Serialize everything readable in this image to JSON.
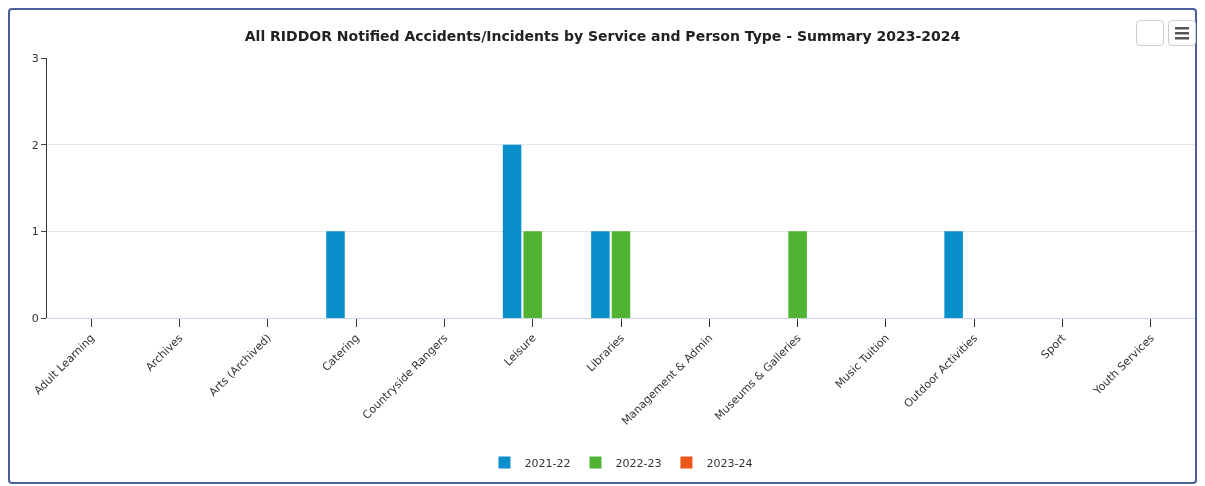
{
  "chart_data": {
    "type": "bar",
    "title": "All RIDDOR Notified Accidents/Incidents by Service and Person Type - Summary 2023-2024",
    "categories": [
      "Adult Learning",
      "Archives",
      "Arts (Archived)",
      "Catering",
      "Countryside Rangers",
      "Leisure",
      "Libraries",
      "Management & Admin",
      "Museums & Galleries",
      "Music Tuition",
      "Outdoor Activities",
      "Sport",
      "Youth Services"
    ],
    "series": [
      {
        "name": "2021-22",
        "color": "#0b8fca",
        "values": [
          0,
          0,
          0,
          1,
          0,
          2,
          1,
          0,
          0,
          0,
          1,
          0,
          0
        ]
      },
      {
        "name": "2022-23",
        "color": "#50b432",
        "values": [
          0,
          0,
          0,
          0,
          0,
          1,
          1,
          0,
          1,
          0,
          0,
          0,
          0
        ]
      },
      {
        "name": "2023-24",
        "color": "#ed561b",
        "values": [
          0,
          0,
          0,
          0,
          0,
          0,
          0,
          0,
          0,
          0,
          0,
          0,
          0
        ]
      }
    ],
    "ylim": [
      0,
      3
    ],
    "yticks": [
      0,
      1,
      2,
      3
    ],
    "grid": "y",
    "legend": "bottom"
  }
}
